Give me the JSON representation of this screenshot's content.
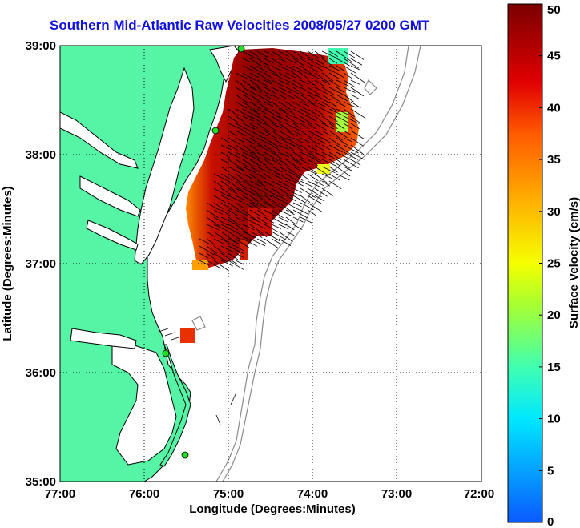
{
  "title": "Southern Mid-Atlantic Raw Velocities 2008/05/27 0200 GMT",
  "x_axis": {
    "label": "Longitude (Degrees:Minutes)",
    "ticks": [
      "77:00",
      "76:00",
      "75:00",
      "74:00",
      "73:00",
      "72:00"
    ]
  },
  "y_axis": {
    "label": "Latitude (Degrees:Minutes)",
    "ticks": [
      "39:00",
      "38:00",
      "37:00",
      "36:00",
      "35:00"
    ]
  },
  "colorbar": {
    "label": "Surface Velocity (cm/s)",
    "ticks": [
      "50",
      "45",
      "40",
      "35",
      "30",
      "25",
      "20",
      "15",
      "10",
      "5",
      "0"
    ],
    "min": 0,
    "max": 50
  },
  "colors": {
    "land": "#55f5a5",
    "coast": "#000000",
    "bathymetry": "#8a8a8a",
    "title": "#1010e0",
    "grid": "#000000",
    "station": "#22dd22"
  },
  "map_extent": {
    "lon": [
      -77,
      -72
    ],
    "lat": [
      35,
      39
    ]
  }
}
